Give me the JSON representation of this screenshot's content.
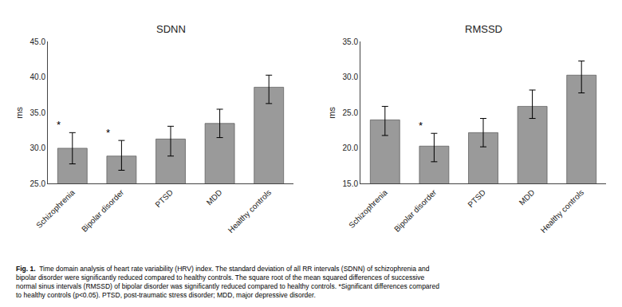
{
  "chart_data": [
    {
      "type": "bar",
      "title": "SDNN",
      "ylabel": "ms",
      "categories": [
        "Schizophrenia",
        "Bipolar disorder",
        "PTSD",
        "MDD",
        "Healthy controls"
      ],
      "values": [
        30.0,
        28.9,
        31.3,
        33.5,
        38.6
      ],
      "error_upper": [
        2.2,
        2.2,
        1.8,
        2.0,
        1.7
      ],
      "error_lower": [
        2.2,
        2.0,
        2.4,
        2.0,
        2.3
      ],
      "color": "#9a9a9a",
      "ylim": [
        25.0,
        45.0
      ],
      "yticks": [
        {
          "value": 25.0,
          "label": "25.0"
        },
        {
          "value": 30.0,
          "label": "30.0"
        },
        {
          "value": 35.0,
          "label": "35.0"
        },
        {
          "value": 40.0,
          "label": "40.0"
        },
        {
          "value": 45.0,
          "label": "45.0"
        }
      ],
      "grid": false,
      "annotations": [
        {
          "category": "Schizophrenia",
          "text": "*"
        },
        {
          "category": "Bipolar disorder",
          "text": "*"
        }
      ]
    },
    {
      "type": "bar",
      "title": "RMSSD",
      "ylabel": "ms",
      "categories": [
        "Schizophrenia",
        "Bipolar disorder",
        "PTSD",
        "MDD",
        "Healthy controls"
      ],
      "values": [
        24.0,
        20.3,
        22.2,
        25.9,
        30.3
      ],
      "error_upper": [
        1.9,
        1.8,
        2.0,
        2.3,
        2.0
      ],
      "error_lower": [
        2.2,
        2.2,
        2.0,
        1.7,
        2.5
      ],
      "color": "#9a9a9a",
      "ylim": [
        15.0,
        35.0
      ],
      "yticks": [
        {
          "value": 15.0,
          "label": "15.0"
        },
        {
          "value": 20.0,
          "label": "20.0"
        },
        {
          "value": 25.0,
          "label": "25.0"
        },
        {
          "value": 30.0,
          "label": "30.0"
        },
        {
          "value": 35.0,
          "label": "35.0"
        }
      ],
      "grid": false,
      "annotations": [
        {
          "category": "Bipolar disorder",
          "text": "*"
        }
      ]
    }
  ],
  "caption": {
    "bold": "Fig. 1.",
    "lines": [
      "Time domain analysis of heart rate variability (HRV) index. The standard deviation of all RR intervals (SDNN) of schizophrenia and",
      "bipolar disorder were significantly reduced compared to healthy controls. The square root of the mean squared differences of successive",
      "normal sinus intervals (RMSSD) of bipolar disorder was significantly reduced compared to healthy controls. *Significant differences compared",
      "to healthy controls (p<0.05). PTSD, post-traumatic stress disorder; MDD, major depressive disorder."
    ]
  }
}
